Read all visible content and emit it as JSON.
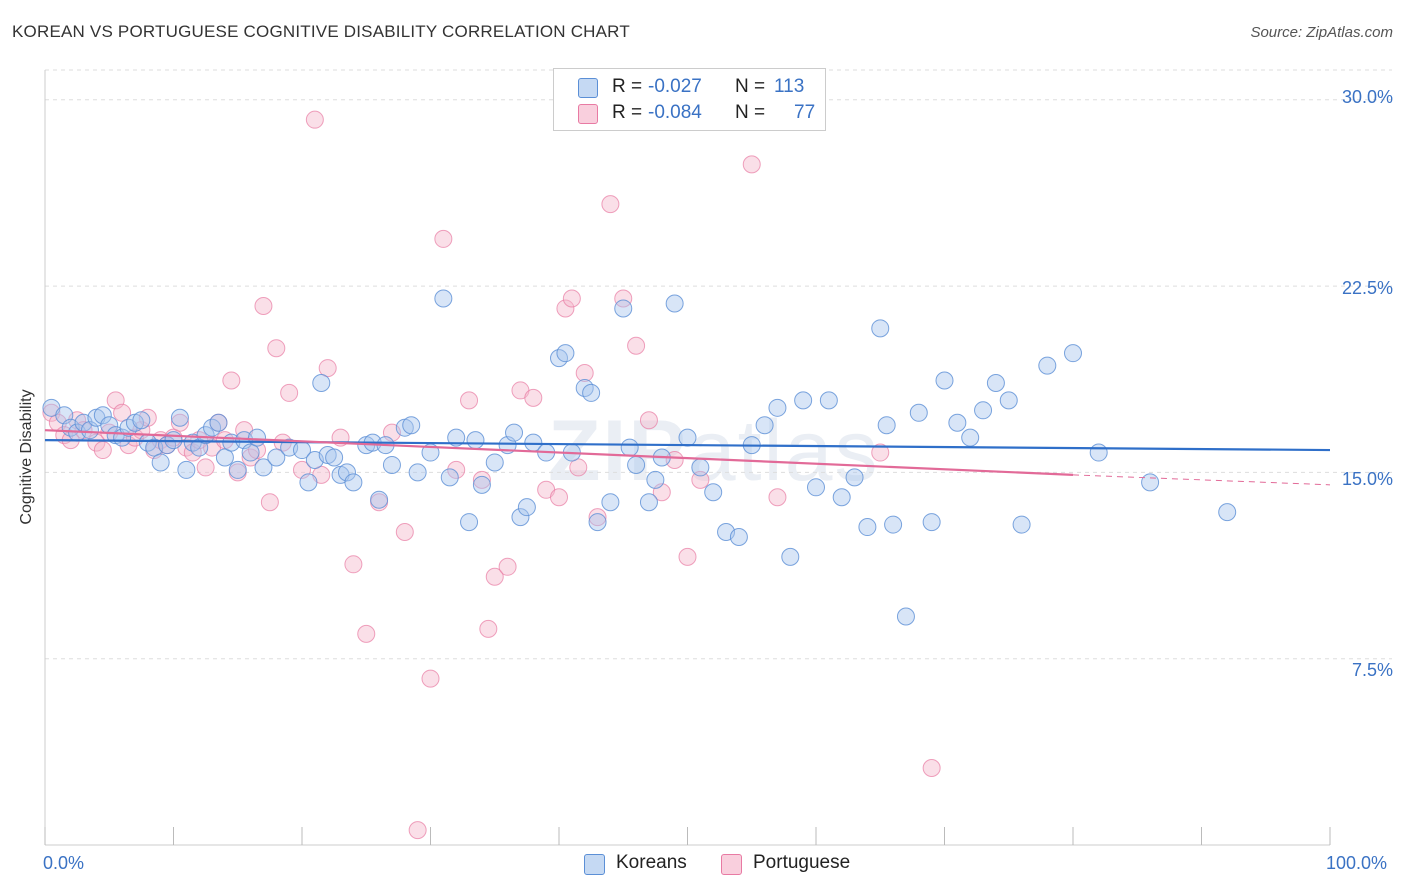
{
  "title": "KOREAN VS PORTUGUESE COGNITIVE DISABILITY CORRELATION CHART",
  "source": "Source: ZipAtlas.com",
  "watermark": {
    "bold": "ZIP",
    "thin": "atlas"
  },
  "colors": {
    "koreans": "#5b8fd6",
    "koreans_fill": "#a9c6ee",
    "portuguese": "#e87aa3",
    "portuguese_fill": "#f5b8cd",
    "axis_text": "#3a72c4",
    "grid": "#dddddd"
  },
  "legend": {
    "koreans": {
      "r_label": "R =",
      "r_value": "-0.027",
      "n_label": "N =",
      "n_value": "113"
    },
    "portuguese": {
      "r_label": "R =",
      "r_value": "-0.084",
      "n_label": "N =",
      "n_value": "77"
    }
  },
  "bottom_legend": {
    "koreans": "Koreans",
    "portuguese": "Portuguese"
  },
  "chart_data": {
    "type": "scatter",
    "title": "KOREAN VS PORTUGUESE COGNITIVE DISABILITY CORRELATION CHART",
    "xlabel": "",
    "ylabel": "Cognitive Disability",
    "xlim": [
      0,
      100
    ],
    "ylim": [
      0,
      31.2
    ],
    "x_tick_labels": [
      "0.0%",
      "100.0%"
    ],
    "y_ticks": [
      7.5,
      15.0,
      22.5,
      30.0
    ],
    "y_tick_labels": [
      "7.5%",
      "15.0%",
      "22.5%",
      "30.0%"
    ],
    "grid": "horizontal dashed",
    "legend_position": "top-center",
    "series": [
      {
        "name": "Koreans",
        "r": -0.027,
        "n": 113,
        "trend": {
          "x": [
            0,
            100
          ],
          "y": [
            16.3,
            15.9
          ]
        },
        "points": [
          [
            0.5,
            17.6
          ],
          [
            1.5,
            17.3
          ],
          [
            2,
            16.8
          ],
          [
            2.5,
            16.6
          ],
          [
            3,
            17.0
          ],
          [
            3.5,
            16.7
          ],
          [
            4,
            17.2
          ],
          [
            4.5,
            17.3
          ],
          [
            5,
            16.9
          ],
          [
            5.5,
            16.5
          ],
          [
            6,
            16.4
          ],
          [
            6.5,
            16.8
          ],
          [
            7,
            17.0
          ],
          [
            7.5,
            17.1
          ],
          [
            8,
            16.2
          ],
          [
            8.5,
            16.0
          ],
          [
            9,
            15.4
          ],
          [
            9.5,
            16.1
          ],
          [
            10,
            16.3
          ],
          [
            10.5,
            17.2
          ],
          [
            11,
            15.1
          ],
          [
            11.5,
            16.2
          ],
          [
            12,
            16.0
          ],
          [
            12.5,
            16.5
          ],
          [
            13,
            16.8
          ],
          [
            13.5,
            17.0
          ],
          [
            14,
            15.6
          ],
          [
            14.5,
            16.2
          ],
          [
            15,
            15.1
          ],
          [
            15.5,
            16.3
          ],
          [
            16,
            15.8
          ],
          [
            16.5,
            16.4
          ],
          [
            17,
            15.2
          ],
          [
            18,
            15.6
          ],
          [
            19,
            16.0
          ],
          [
            20,
            15.9
          ],
          [
            20.5,
            14.6
          ],
          [
            21,
            15.5
          ],
          [
            21.5,
            18.6
          ],
          [
            22,
            15.7
          ],
          [
            22.5,
            15.6
          ],
          [
            23,
            14.9
          ],
          [
            23.5,
            15.0
          ],
          [
            24,
            14.6
          ],
          [
            25,
            16.1
          ],
          [
            25.5,
            16.2
          ],
          [
            26,
            13.9
          ],
          [
            26.5,
            16.1
          ],
          [
            27,
            15.3
          ],
          [
            28,
            16.8
          ],
          [
            28.5,
            16.9
          ],
          [
            29,
            15.0
          ],
          [
            30,
            15.8
          ],
          [
            31,
            22.0
          ],
          [
            31.5,
            14.8
          ],
          [
            32,
            16.4
          ],
          [
            33,
            13.0
          ],
          [
            33.5,
            16.3
          ],
          [
            34,
            14.5
          ],
          [
            35,
            15.4
          ],
          [
            36,
            16.1
          ],
          [
            36.5,
            16.6
          ],
          [
            37,
            13.2
          ],
          [
            37.5,
            13.6
          ],
          [
            38,
            16.2
          ],
          [
            39,
            15.8
          ],
          [
            40,
            19.6
          ],
          [
            40.5,
            19.8
          ],
          [
            41,
            15.8
          ],
          [
            42,
            18.4
          ],
          [
            42.5,
            18.2
          ],
          [
            43,
            13.0
          ],
          [
            44,
            13.8
          ],
          [
            45,
            21.6
          ],
          [
            45.5,
            16.0
          ],
          [
            46,
            15.3
          ],
          [
            47,
            13.8
          ],
          [
            47.5,
            14.7
          ],
          [
            48,
            15.6
          ],
          [
            49,
            21.8
          ],
          [
            50,
            16.4
          ],
          [
            51,
            15.2
          ],
          [
            52,
            14.2
          ],
          [
            53,
            12.6
          ],
          [
            54,
            12.4
          ],
          [
            55,
            16.1
          ],
          [
            56,
            16.9
          ],
          [
            57,
            17.6
          ],
          [
            58,
            11.6
          ],
          [
            59,
            17.9
          ],
          [
            60,
            14.4
          ],
          [
            61,
            17.9
          ],
          [
            62,
            14.0
          ],
          [
            63,
            14.8
          ],
          [
            64,
            12.8
          ],
          [
            65,
            20.8
          ],
          [
            65.5,
            16.9
          ],
          [
            66,
            12.9
          ],
          [
            67,
            9.2
          ],
          [
            68,
            17.4
          ],
          [
            69,
            13.0
          ],
          [
            70,
            18.7
          ],
          [
            71,
            17.0
          ],
          [
            72,
            16.4
          ],
          [
            73,
            17.5
          ],
          [
            74,
            18.6
          ],
          [
            75,
            17.9
          ],
          [
            76,
            12.9
          ],
          [
            78,
            19.3
          ],
          [
            80,
            19.8
          ],
          [
            82,
            15.8
          ],
          [
            86,
            14.6
          ],
          [
            92,
            13.4
          ]
        ]
      },
      {
        "name": "Portuguese",
        "r": -0.084,
        "n": 77,
        "trend": {
          "x": [
            0,
            80
          ],
          "y": [
            16.7,
            14.9
          ]
        },
        "trend_dashed": {
          "x": [
            80,
            100
          ],
          "y": [
            14.9,
            14.5
          ]
        },
        "points": [
          [
            0.5,
            17.4
          ],
          [
            1,
            17.0
          ],
          [
            1.5,
            16.5
          ],
          [
            2,
            16.3
          ],
          [
            2.5,
            17.1
          ],
          [
            3,
            16.7
          ],
          [
            4,
            16.2
          ],
          [
            4.5,
            15.9
          ],
          [
            5,
            16.6
          ],
          [
            5.5,
            17.9
          ],
          [
            6,
            17.4
          ],
          [
            6.5,
            16.1
          ],
          [
            7,
            16.4
          ],
          [
            7.5,
            16.7
          ],
          [
            8,
            17.2
          ],
          [
            8.5,
            15.9
          ],
          [
            9,
            16.3
          ],
          [
            9.5,
            16.1
          ],
          [
            10,
            16.4
          ],
          [
            10.5,
            17.0
          ],
          [
            11,
            16.0
          ],
          [
            11.5,
            15.8
          ],
          [
            12,
            16.3
          ],
          [
            12.5,
            15.2
          ],
          [
            13,
            16.0
          ],
          [
            13.5,
            17.0
          ],
          [
            14,
            16.3
          ],
          [
            14.5,
            18.7
          ],
          [
            15,
            15.0
          ],
          [
            15.5,
            16.7
          ],
          [
            16,
            15.6
          ],
          [
            16.5,
            15.9
          ],
          [
            17,
            21.7
          ],
          [
            17.5,
            13.8
          ],
          [
            18,
            20.0
          ],
          [
            18.5,
            16.2
          ],
          [
            19,
            18.2
          ],
          [
            20,
            15.1
          ],
          [
            21,
            29.2
          ],
          [
            21.5,
            14.9
          ],
          [
            22,
            19.2
          ],
          [
            23,
            16.4
          ],
          [
            24,
            11.3
          ],
          [
            25,
            8.5
          ],
          [
            26,
            13.8
          ],
          [
            27,
            16.6
          ],
          [
            28,
            12.6
          ],
          [
            29,
            0.6
          ],
          [
            30,
            6.7
          ],
          [
            31,
            24.4
          ],
          [
            32,
            15.1
          ],
          [
            33,
            17.9
          ],
          [
            34,
            14.7
          ],
          [
            34.5,
            8.7
          ],
          [
            35,
            10.8
          ],
          [
            36,
            11.2
          ],
          [
            37,
            18.3
          ],
          [
            38,
            18.0
          ],
          [
            39,
            14.3
          ],
          [
            40,
            14.0
          ],
          [
            40.5,
            21.6
          ],
          [
            41,
            22.0
          ],
          [
            41.5,
            15.2
          ],
          [
            42,
            19.0
          ],
          [
            43,
            13.2
          ],
          [
            44,
            25.8
          ],
          [
            45,
            22.0
          ],
          [
            46,
            20.1
          ],
          [
            47,
            17.1
          ],
          [
            48,
            14.2
          ],
          [
            49,
            15.5
          ],
          [
            50,
            11.6
          ],
          [
            51,
            14.7
          ],
          [
            55,
            27.4
          ],
          [
            57,
            14.0
          ],
          [
            65,
            15.8
          ],
          [
            69,
            3.1
          ]
        ]
      }
    ]
  }
}
